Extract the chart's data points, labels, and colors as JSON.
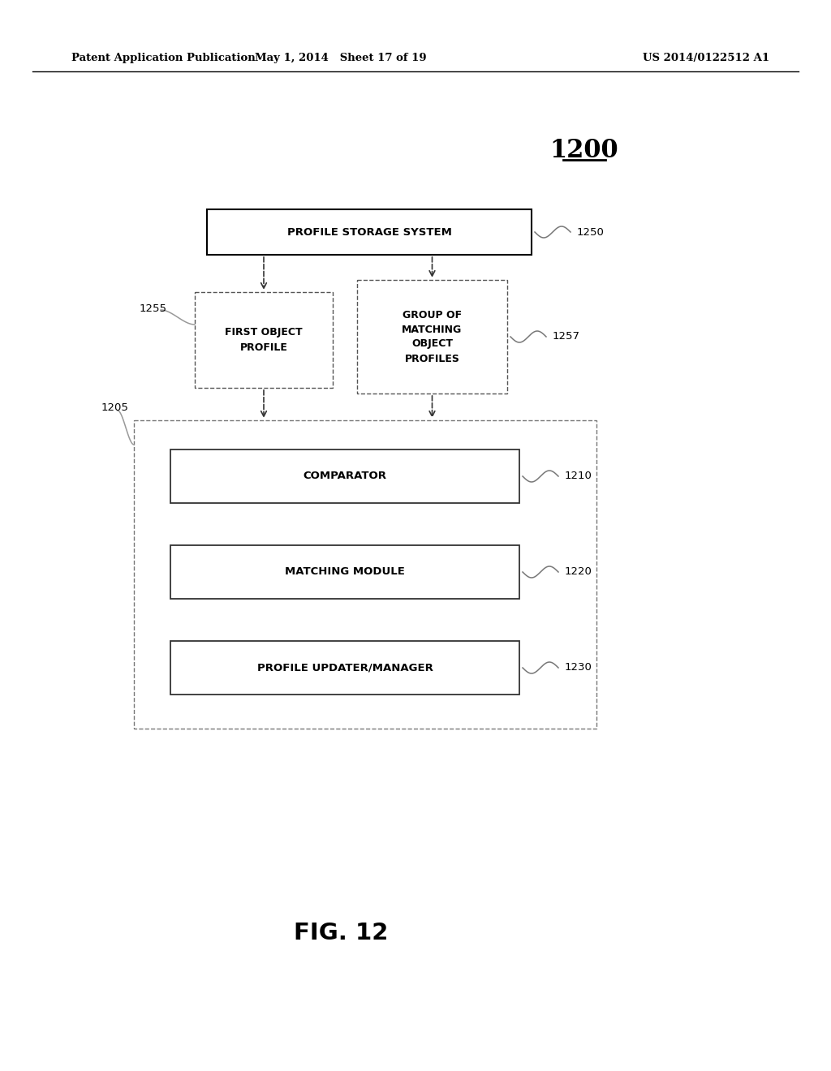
{
  "header_left": "Patent Application Publication",
  "header_mid": "May 1, 2014   Sheet 17 of 19",
  "header_right": "US 2014/0122512 A1",
  "diagram_label": "1200",
  "fig_label": "FIG. 12",
  "background_color": "#ffffff",
  "ps_box": {
    "label": "PROFILE STORAGE SYSTEM",
    "ref": "1250"
  },
  "fo_box": {
    "label": "FIRST OBJECT\nPROFILE",
    "ref": "1255"
  },
  "gm_box": {
    "label": "GROUP OF\nMATCHING\nOBJECT\nPROFILES",
    "ref": "1257"
  },
  "outer_box": {
    "label": "",
    "ref": "1205"
  },
  "cp_box": {
    "label": "COMPARATOR",
    "ref": "1210"
  },
  "mm_box": {
    "label": "MATCHING MODULE",
    "ref": "1220"
  },
  "pu_box": {
    "label": "PROFILE UPDATER/MANAGER",
    "ref": "1230"
  }
}
